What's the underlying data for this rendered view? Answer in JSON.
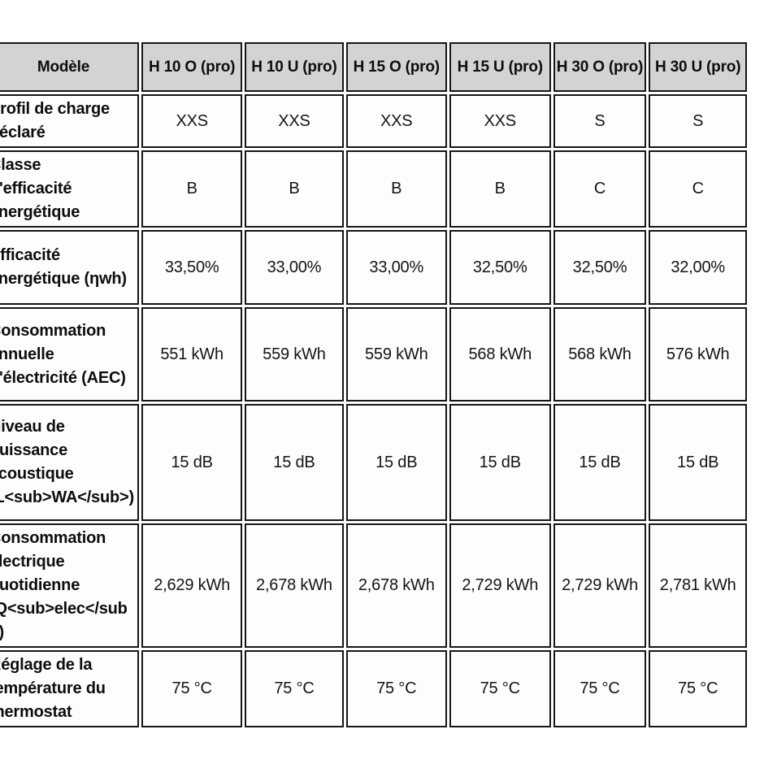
{
  "table": {
    "colors": {
      "header_bg": "#d3d3d3",
      "cell_bg": "#fdfdfd",
      "border": "#161616"
    },
    "header": {
      "model_label": "Modèle",
      "columns": [
        "H 10 O (pro)",
        "H 10 U (pro)",
        "H 15 O (pro)",
        "H 15 U (pro)",
        "H 30 O (pro)",
        "H 30 U (pro)"
      ]
    },
    "rows": [
      {
        "label": "Profil de charge\ndéclaré",
        "values": [
          "XXS",
          "XXS",
          "XXS",
          "XXS",
          "S",
          "S"
        ]
      },
      {
        "label": "Classe\nd'efficacité\nénergétique",
        "values": [
          "B",
          "B",
          "B",
          "B",
          "C",
          "C"
        ]
      },
      {
        "label": "Efficacité\nénergétique (ηwh)",
        "values": [
          "33,50%",
          "33,00%",
          "33,00%",
          "32,50%",
          "32,50%",
          "32,00%"
        ]
      },
      {
        "label": "Consommation\nannuelle\nd'électricité (AEC)",
        "values": [
          "551 kWh",
          "559 kWh",
          "559 kWh",
          "568 kWh",
          "568 kWh",
          "576 kWh"
        ]
      },
      {
        "label": "Niveau de\npuissance\nacoustique\n(L<sub>WA</sub>)",
        "values": [
          "15 dB",
          "15 dB",
          "15 dB",
          "15 dB",
          "15 dB",
          "15 dB"
        ]
      },
      {
        "label": "Consommation\nélectrique\nquotidienne\n(Q<sub>elec</sub\n>)",
        "values": [
          "2,629 kWh",
          "2,678 kWh",
          "2,678 kWh",
          "2,729 kWh",
          "2,729 kWh",
          "2,781 kWh"
        ]
      },
      {
        "label": "Réglage de la\ntempérature du\nthermostat",
        "values": [
          "75 °C",
          "75 °C",
          "75 °C",
          "75 °C",
          "75 °C",
          "75 °C"
        ]
      }
    ]
  }
}
